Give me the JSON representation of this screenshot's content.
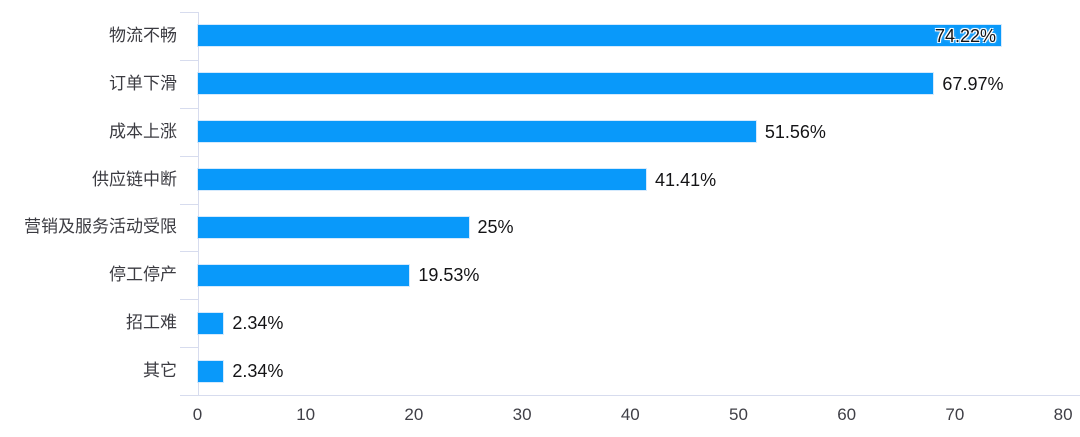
{
  "chart_data": {
    "type": "bar",
    "orientation": "horizontal",
    "title": "",
    "xlabel": "",
    "ylabel": "",
    "categories": [
      "物流不畅",
      "订单下滑",
      "成本上涨",
      "供应链中断",
      "营销及服务活动受限",
      "停工停产",
      "招工难",
      "其它"
    ],
    "values": [
      74.22,
      67.97,
      51.56,
      41.41,
      25,
      19.53,
      2.34,
      2.34
    ],
    "value_labels": [
      "74.22%",
      "67.97%",
      "51.56%",
      "41.41%",
      "25%",
      "19.53%",
      "2.34%",
      "2.34%"
    ],
    "value_label_placement": [
      "inside",
      "outside",
      "outside",
      "outside",
      "outside",
      "outside",
      "outside",
      "outside"
    ],
    "xlim": [
      0,
      80
    ],
    "x_ticks": [
      "0",
      "10",
      "20",
      "30",
      "40",
      "50",
      "60",
      "70",
      "80"
    ],
    "grid": false,
    "legend": false,
    "colors": {
      "bar": "#0999fa",
      "axis_line": "#d7dcee",
      "x_tick_label": "#3f3f46",
      "category_label": "#3b3b41",
      "value_label": "#141416",
      "background": "#ffffff"
    }
  }
}
